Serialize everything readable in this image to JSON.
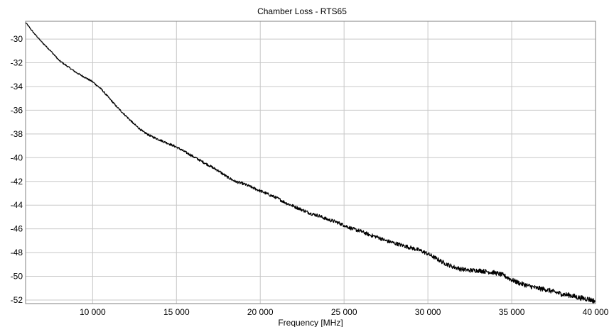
{
  "chart_data": {
    "type": "line",
    "title": "Chamber Loss - RTS65",
    "xlabel": "Frequency [MHz]",
    "ylabel": "",
    "xlim": [
      6000,
      40000
    ],
    "ylim": [
      -52.3,
      -28.5
    ],
    "grid": true,
    "xticks": [
      10000,
      15000,
      20000,
      25000,
      30000,
      35000,
      40000
    ],
    "xtick_labels": [
      "10 000",
      "15 000",
      "20 000",
      "25 000",
      "30 000",
      "35 000",
      "40 000"
    ],
    "yticks": [
      -30,
      -32,
      -34,
      -36,
      -38,
      -40,
      -42,
      -44,
      -46,
      -48,
      -50,
      -52
    ],
    "ytick_labels": [
      "-30",
      "-32",
      "-34",
      "-36",
      "-38",
      "-40",
      "-42",
      "-44",
      "-46",
      "-48",
      "-50",
      "-52"
    ],
    "series": [
      {
        "color": "#000000",
        "x": [
          6000,
          6500,
          7000,
          7500,
          8000,
          8500,
          9000,
          9500,
          10000,
          10500,
          11000,
          11500,
          12000,
          12500,
          13000,
          13500,
          14000,
          14500,
          15000,
          15500,
          16000,
          16500,
          17000,
          17500,
          18000,
          18500,
          19000,
          19500,
          20000,
          20500,
          21000,
          21500,
          22000,
          22500,
          23000,
          23500,
          24000,
          24500,
          25000,
          25500,
          26000,
          26500,
          27000,
          27500,
          28000,
          28500,
          29000,
          29500,
          30000,
          30500,
          31000,
          31500,
          32000,
          32500,
          33000,
          33500,
          34000,
          34500,
          35000,
          35500,
          36000,
          36500,
          37000,
          37500,
          38000,
          38500,
          39000,
          39500,
          40000
        ],
        "y": [
          -28.6,
          -29.5,
          -30.3,
          -31.0,
          -31.8,
          -32.3,
          -32.8,
          -33.2,
          -33.6,
          -34.2,
          -35.0,
          -35.8,
          -36.5,
          -37.2,
          -37.8,
          -38.2,
          -38.5,
          -38.8,
          -39.1,
          -39.5,
          -39.9,
          -40.3,
          -40.7,
          -41.1,
          -41.6,
          -42.0,
          -42.2,
          -42.5,
          -42.8,
          -43.1,
          -43.4,
          -43.8,
          -44.1,
          -44.4,
          -44.7,
          -44.9,
          -45.2,
          -45.4,
          -45.7,
          -46.0,
          -46.2,
          -46.5,
          -46.7,
          -47.0,
          -47.2,
          -47.4,
          -47.6,
          -47.8,
          -48.1,
          -48.5,
          -48.9,
          -49.2,
          -49.4,
          -49.5,
          -49.5,
          -49.6,
          -49.7,
          -49.9,
          -50.3,
          -50.6,
          -50.8,
          -51.0,
          -51.1,
          -51.3,
          -51.5,
          -51.6,
          -51.8,
          -51.9,
          -52.1
        ]
      }
    ]
  }
}
